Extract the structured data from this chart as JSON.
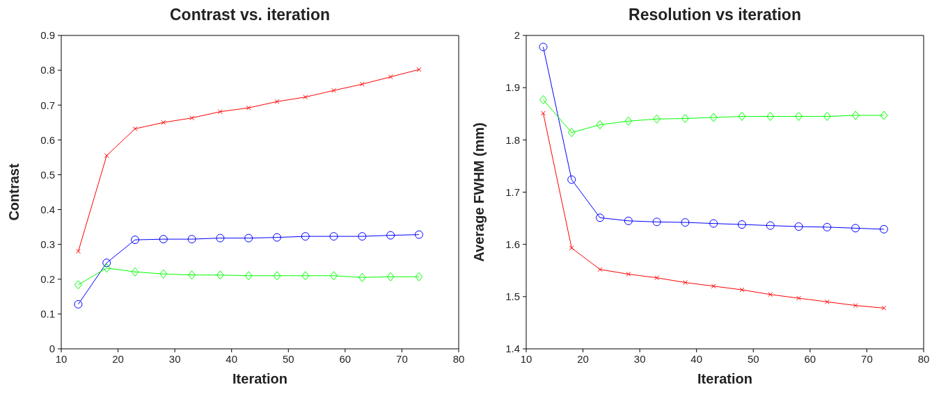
{
  "chart_data": [
    {
      "type": "line",
      "title": "Contrast vs. iteration",
      "xlabel": "Iteration",
      "ylabel": "Contrast",
      "x": [
        13,
        18,
        23,
        28,
        33,
        38,
        43,
        48,
        53,
        58,
        63,
        68,
        73
      ],
      "xlim": [
        10,
        80
      ],
      "xticks": [
        10,
        20,
        30,
        40,
        50,
        60,
        70,
        80
      ],
      "ylim": [
        0,
        0.9
      ],
      "yticks": [
        0,
        0.1,
        0.2,
        0.3,
        0.4,
        0.5,
        0.6,
        0.7,
        0.8,
        0.9
      ],
      "grid": false,
      "legend": false,
      "line_style": "solid",
      "series": [
        {
          "color": "#ff0000",
          "marker": "cross",
          "values": [
            0.28,
            0.555,
            0.632,
            0.65,
            0.663,
            0.681,
            0.692,
            0.71,
            0.723,
            0.742,
            0.76,
            0.781,
            0.802
          ]
        },
        {
          "color": "#0000ff",
          "marker": "circle",
          "values": [
            0.128,
            0.247,
            0.313,
            0.315,
            0.315,
            0.318,
            0.318,
            0.32,
            0.323,
            0.323,
            0.323,
            0.326,
            0.328
          ]
        },
        {
          "color": "#00ff00",
          "marker": "diamond",
          "values": [
            0.184,
            0.232,
            0.221,
            0.215,
            0.212,
            0.212,
            0.21,
            0.21,
            0.21,
            0.21,
            0.205,
            0.207,
            0.207
          ]
        }
      ]
    },
    {
      "type": "line",
      "title": "Resolution vs iteration",
      "xlabel": "Iteration",
      "ylabel": "Average FWHM (mm)",
      "x": [
        13,
        18,
        23,
        28,
        33,
        38,
        43,
        48,
        53,
        58,
        63,
        68,
        73
      ],
      "xlim": [
        10,
        80
      ],
      "xticks": [
        10,
        20,
        30,
        40,
        50,
        60,
        70,
        80
      ],
      "ylim": [
        1.4,
        2
      ],
      "yticks": [
        1.4,
        1.5,
        1.6,
        1.7,
        1.8,
        1.9,
        2
      ],
      "grid": false,
      "legend": false,
      "line_style": "solid",
      "series": [
        {
          "color": "#0000ff",
          "marker": "circle",
          "values": [
            1.978,
            1.724,
            1.651,
            1.645,
            1.643,
            1.642,
            1.64,
            1.638,
            1.636,
            1.634,
            1.633,
            1.631,
            1.629
          ]
        },
        {
          "color": "#00ff00",
          "marker": "diamond",
          "values": [
            1.877,
            1.814,
            1.829,
            1.836,
            1.84,
            1.841,
            1.843,
            1.845,
            1.845,
            1.845,
            1.845,
            1.847,
            1.847
          ]
        },
        {
          "color": "#ff0000",
          "marker": "cross",
          "values": [
            1.851,
            1.593,
            1.552,
            1.543,
            1.536,
            1.527,
            1.52,
            1.513,
            1.504,
            1.497,
            1.49,
            1.483,
            1.478
          ]
        }
      ]
    }
  ]
}
